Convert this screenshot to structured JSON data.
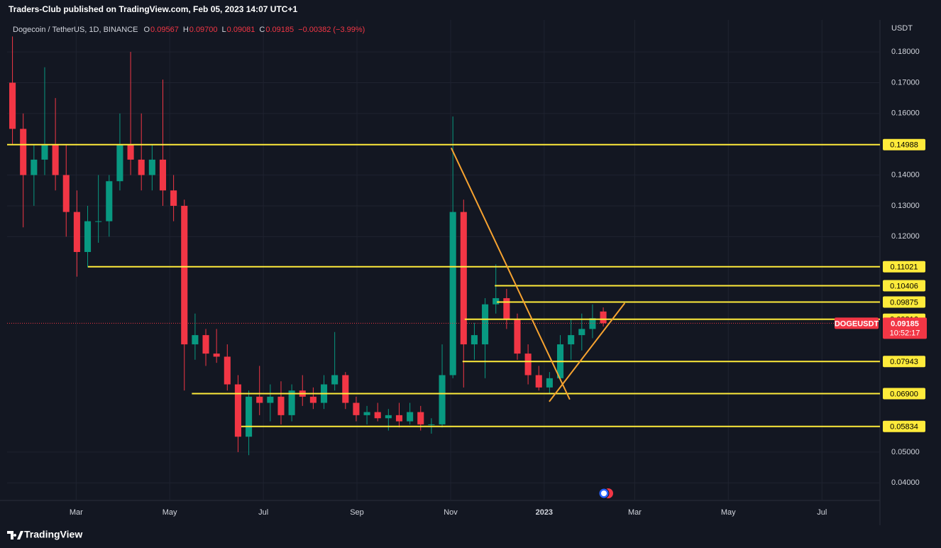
{
  "header": {
    "byline": "Traders-Club published on TradingView.com, Feb 05, 2023 14:07 UTC+1"
  },
  "footer": {
    "brand": "TradingView"
  },
  "chart_data": {
    "type": "candlestick",
    "title": "Dogecoin / TetherUS, 1D, BINANCE",
    "ohlc_header": [
      {
        "name": "O",
        "value": 0.09567
      },
      {
        "name": "H",
        "value": {
          "value": 0.097,
          "label": "0.09700"
        }
      },
      {
        "name": "L",
        "value": 0.09081
      },
      {
        "name": "C",
        "value": 0.09185
      }
    ],
    "change_label": "−0.00382 (−3.99%)",
    "axis_unit": "USDT",
    "up_color": "#089981",
    "down_color": "#f23645",
    "level_color": "#ffeb3b",
    "trend_color": "#f7a330",
    "grid": true,
    "x": [
      0.5,
      1.5,
      2.5,
      3.5,
      4.5,
      5.5,
      6.5,
      7.5,
      8.5,
      9.5,
      10.5,
      11.5,
      12.5,
      13.5,
      14.5,
      15.5,
      16.5,
      17.5,
      18.5,
      19.5,
      20.5,
      21.5,
      22.5,
      23.5,
      24.5,
      25.5,
      26.5,
      27.5,
      28.5,
      29.5,
      30.5,
      31.5,
      32.5,
      33.5,
      34.5,
      35.5,
      36.5,
      37.5,
      38.5,
      39.5,
      40.5,
      41.5,
      42.5,
      43.5,
      44.5,
      45.5,
      46.5,
      47.5,
      48.5,
      49.5,
      50.5,
      51.5,
      52.5,
      53.5,
      54.5,
      55.5
    ],
    "open": [
      0.17,
      0.155,
      0.14,
      0.145,
      0.15,
      0.14,
      0.128,
      0.115,
      0.125,
      0.125,
      0.138,
      0.15,
      0.145,
      0.14,
      0.145,
      0.135,
      0.13,
      0.085,
      0.088,
      0.082,
      0.081,
      0.072,
      0.055,
      0.068,
      0.066,
      0.068,
      0.062,
      0.07,
      0.068,
      0.066,
      0.072,
      0.075,
      0.066,
      0.062,
      0.063,
      0.061,
      0.062,
      0.06,
      0.063,
      0.059,
      0.059,
      0.075,
      0.128,
      0.085,
      0.085,
      0.098,
      0.1,
      0.093,
      0.082,
      0.075,
      0.071,
      0.074,
      0.085,
      0.088,
      0.09,
      0.09567
    ],
    "high": [
      0.185,
      0.16,
      0.15,
      0.175,
      0.165,
      0.15,
      0.135,
      0.13,
      0.14,
      0.14,
      0.16,
      0.18,
      0.16,
      0.15,
      0.171,
      0.14,
      0.132,
      0.095,
      0.09,
      0.09,
      0.085,
      0.075,
      0.07,
      0.078,
      0.072,
      0.073,
      0.072,
      0.075,
      0.071,
      0.075,
      0.089,
      0.076,
      0.068,
      0.065,
      0.066,
      0.064,
      0.066,
      0.066,
      0.065,
      0.061,
      0.085,
      0.159,
      0.132,
      0.092,
      0.1,
      0.111,
      0.103,
      0.095,
      0.085,
      0.078,
      0.076,
      0.088,
      0.093,
      0.095,
      0.098,
      0.097
    ],
    "low": [
      0.15,
      0.123,
      0.13,
      0.14,
      0.135,
      0.12,
      0.107,
      0.11,
      0.118,
      0.12,
      0.135,
      0.14,
      0.135,
      0.135,
      0.13,
      0.125,
      0.07,
      0.08,
      0.078,
      0.079,
      0.07,
      0.05,
      0.049,
      0.062,
      0.06,
      0.059,
      0.06,
      0.065,
      0.064,
      0.064,
      0.07,
      0.064,
      0.06,
      0.059,
      0.06,
      0.057,
      0.058,
      0.059,
      0.057,
      0.056,
      0.058,
      0.074,
      0.071,
      0.08,
      0.074,
      0.095,
      0.09,
      0.08,
      0.072,
      0.07,
      0.069,
      0.073,
      0.08,
      0.083,
      0.087,
      0.09081
    ],
    "close": [
      0.155,
      0.14,
      0.145,
      0.15,
      0.14,
      0.128,
      0.115,
      0.125,
      0.125,
      0.138,
      0.15,
      0.145,
      0.14,
      0.145,
      0.135,
      0.13,
      0.085,
      0.088,
      0.082,
      0.081,
      0.072,
      0.055,
      0.068,
      0.066,
      0.068,
      0.062,
      0.07,
      0.068,
      0.066,
      0.072,
      0.075,
      0.066,
      0.062,
      0.063,
      0.061,
      0.062,
      0.06,
      0.063,
      0.059,
      0.059,
      0.075,
      0.128,
      0.085,
      0.088,
      0.098,
      0.1,
      0.093,
      0.082,
      0.075,
      0.071,
      0.074,
      0.085,
      0.088,
      0.09,
      0.0935,
      0.09185
    ],
    "xlim": [
      0,
      81.26
    ],
    "ylim": [
      0.0343,
      0.1904
    ],
    "xticks": [
      {
        "value": 6.43,
        "label": "Mar"
      },
      {
        "value": 15.14,
        "label": "May"
      },
      {
        "value": 23.86,
        "label": "Jul"
      },
      {
        "value": 32.57,
        "label": "Sep"
      },
      {
        "value": 41.29,
        "label": "Nov"
      },
      {
        "value": 50,
        "label": "2023"
      },
      {
        "value": 58.43,
        "label": "Mar"
      },
      {
        "value": 67.14,
        "label": "May"
      },
      {
        "value": 75.86,
        "label": "Jul"
      }
    ],
    "yticks": [
      {
        "value": 0.18,
        "label": "0.18000"
      },
      {
        "value": 0.17,
        "label": "0.17000"
      },
      {
        "value": 0.16,
        "label": "0.16000"
      },
      {
        "value": 0.14,
        "label": "0.14000"
      },
      {
        "value": 0.13,
        "label": "0.13000"
      },
      {
        "value": 0.12,
        "label": "0.12000"
      },
      {
        "value": 0.05,
        "label": "0.05000"
      },
      {
        "value": 0.04,
        "label": "0.04000"
      }
    ],
    "levels": [
      {
        "price": 0.14988,
        "from": 0
      },
      {
        "price": 0.11021,
        "from": 7.53
      },
      {
        "price": 0.10406,
        "from": 45.4
      },
      {
        "price": 0.09875,
        "from": 45.6
      },
      {
        "price": 0.09316,
        "from": 42.6
      },
      {
        "price": 0.07943,
        "from": 42.4
      },
      {
        "price": {
          "value": 0.069,
          "label": "0.06900"
        },
        "from": 17.2
      },
      {
        "price": 0.05834,
        "from": 21.8
      }
    ],
    "trendlines": [
      {
        "x": [
          41.35,
          52.38
        ],
        "y": [
          0.1488,
          0.0671
        ]
      },
      {
        "x": [
          50.47,
          57.5
        ],
        "y": [
          0.0664,
          0.0984
        ]
      }
    ],
    "last_price": {
      "symbol": "DOGEUSDT",
      "value": 0.09185,
      "countdown": "10:52:17"
    }
  }
}
